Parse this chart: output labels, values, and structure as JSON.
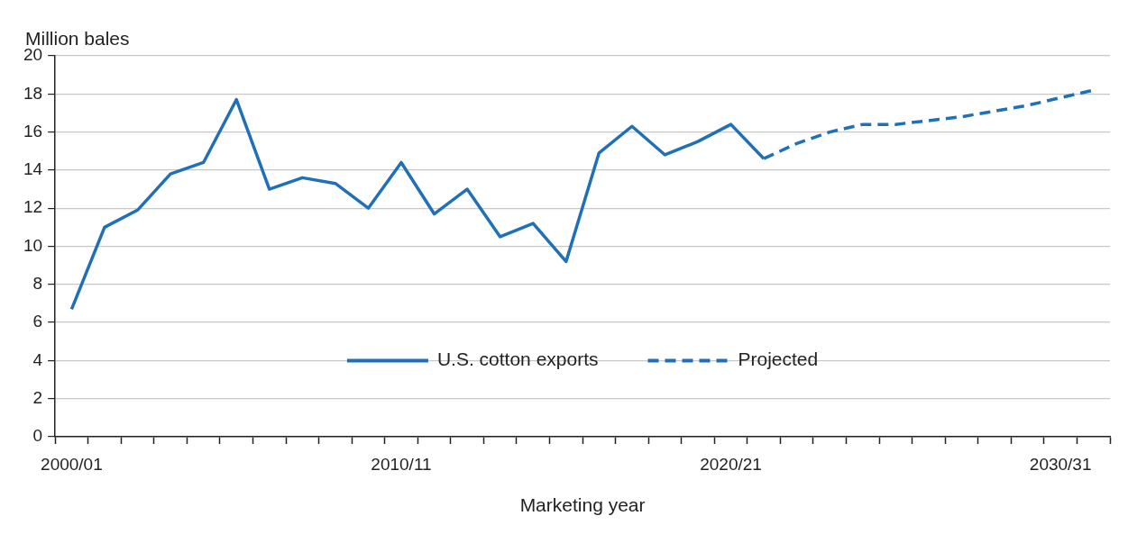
{
  "chart_data": {
    "type": "line",
    "ylabel": "Million bales",
    "xlabel": "Marketing year",
    "categories": [
      "2000/01",
      null,
      null,
      null,
      null,
      null,
      null,
      null,
      null,
      null,
      "2010/11",
      null,
      null,
      null,
      null,
      null,
      null,
      null,
      null,
      null,
      "2020/21",
      null,
      null,
      null,
      null,
      null,
      null,
      null,
      null,
      null,
      "2030/31",
      null
    ],
    "series": [
      {
        "name": "U.S. cotton exports",
        "color": "#1f70b8",
        "line_style": "solid",
        "values": [
          6.7,
          11.0,
          11.9,
          13.8,
          14.4,
          17.7,
          13.0,
          13.6,
          13.3,
          12.0,
          14.4,
          11.7,
          13.0,
          10.5,
          11.2,
          9.2,
          14.9,
          16.3,
          14.8,
          15.5,
          16.4,
          14.6,
          null,
          null,
          null,
          null,
          null,
          null,
          null,
          null,
          null,
          null
        ]
      },
      {
        "name": "Projected",
        "color": "#1f70b8",
        "line_style": "dashed",
        "values": [
          null,
          null,
          null,
          null,
          null,
          null,
          null,
          null,
          null,
          null,
          null,
          null,
          null,
          null,
          null,
          null,
          null,
          null,
          null,
          null,
          null,
          14.6,
          15.4,
          16.0,
          16.4,
          16.4,
          16.6,
          16.8,
          17.1,
          17.4,
          17.8,
          18.2
        ]
      }
    ],
    "ylim": [
      0,
      20
    ],
    "yticks": [
      0,
      2,
      4,
      6,
      8,
      10,
      12,
      14,
      16,
      18,
      20
    ],
    "grid": "y",
    "legend": "bottom",
    "marker": "none"
  }
}
